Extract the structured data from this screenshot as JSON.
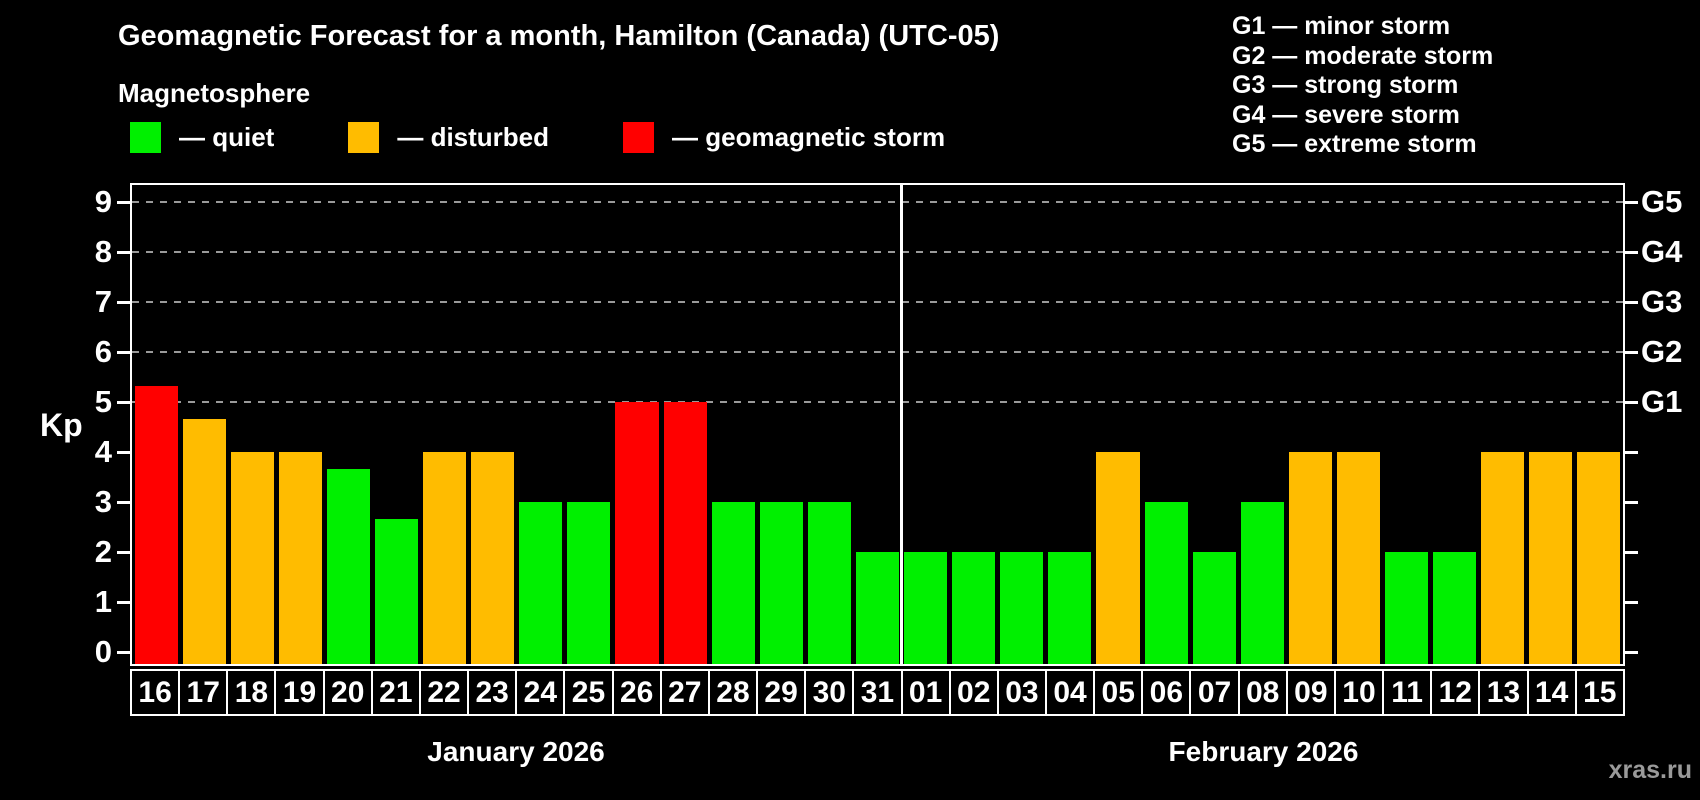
{
  "header": {
    "title": "Geomagnetic Forecast for a month, Hamilton (Canada) (UTC-05)",
    "subtitle": "Magnetosphere",
    "legend": [
      {
        "key": "quiet",
        "label": "— quiet",
        "color": "#00f000"
      },
      {
        "key": "disturbed",
        "label": "— disturbed",
        "color": "#ffbc00"
      },
      {
        "key": "storm",
        "label": "— geomagnetic storm",
        "color": "#ff0000"
      }
    ],
    "g_scale": [
      "G1 — minor storm",
      "G2 — moderate storm",
      "G3 — strong storm",
      "G4 — severe storm",
      "G5 — extreme storm"
    ]
  },
  "chart_data": {
    "type": "bar",
    "title": "Geomagnetic Forecast for a month, Hamilton (Canada) (UTC-05)",
    "ylabel": "Kp",
    "ylim": [
      0,
      9
    ],
    "y_ticks": [
      0,
      1,
      2,
      3,
      4,
      5,
      6,
      7,
      8,
      9
    ],
    "gridlines_at": [
      5,
      6,
      7,
      8,
      9
    ],
    "grid": true,
    "right_axis": [
      {
        "kp": 5,
        "label": "G1"
      },
      {
        "kp": 6,
        "label": "G2"
      },
      {
        "kp": 7,
        "label": "G3"
      },
      {
        "kp": 8,
        "label": "G4"
      },
      {
        "kp": 9,
        "label": "G5"
      }
    ],
    "colors": {
      "quiet": "#00f000",
      "disturbed": "#ffbc00",
      "storm": "#ff0000"
    },
    "months": [
      {
        "label": "January 2026",
        "days": [
          "16",
          "17",
          "18",
          "19",
          "20",
          "21",
          "22",
          "23",
          "24",
          "25",
          "26",
          "27",
          "28",
          "29",
          "30",
          "31"
        ],
        "values": [
          5.33,
          4.67,
          4,
          4,
          3.67,
          2.67,
          4,
          4,
          3,
          3,
          5,
          5,
          3,
          3,
          3,
          2
        ],
        "status": [
          "storm",
          "disturbed",
          "disturbed",
          "disturbed",
          "quiet",
          "quiet",
          "disturbed",
          "disturbed",
          "quiet",
          "quiet",
          "storm",
          "storm",
          "quiet",
          "quiet",
          "quiet",
          "quiet"
        ]
      },
      {
        "label": "February 2026",
        "days": [
          "01",
          "02",
          "03",
          "04",
          "05",
          "06",
          "07",
          "08",
          "09",
          "10",
          "11",
          "12",
          "13",
          "14",
          "15"
        ],
        "values": [
          2,
          2,
          2,
          2,
          4,
          3,
          2,
          3,
          4,
          4,
          2,
          2,
          4,
          4,
          4
        ],
        "status": [
          "quiet",
          "quiet",
          "quiet",
          "quiet",
          "disturbed",
          "quiet",
          "quiet",
          "quiet",
          "disturbed",
          "disturbed",
          "quiet",
          "quiet",
          "disturbed",
          "disturbed",
          "disturbed"
        ]
      }
    ]
  },
  "watermark": "xras.ru"
}
